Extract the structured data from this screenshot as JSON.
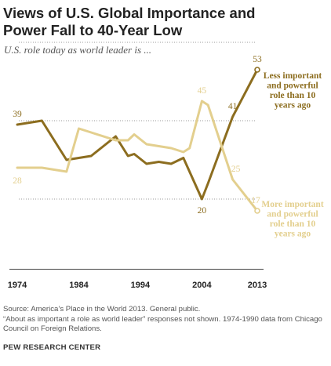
{
  "header": {
    "title": "Views of U.S. Global Importance and Power Fall to 40-Year Low",
    "subtitle": "U.S. role today as world leader is ..."
  },
  "footer": {
    "source_line": "Source: America’s Place in the World 2013. General public.",
    "note_line": "“About as important a role as world leader” responses not shown. 1974-1990 data from Chicago Council on Foreign Relations.",
    "org": "PEW RESEARCH CENTER"
  },
  "colors": {
    "less": "#8c6d1f",
    "more": "#e3cf8e",
    "grid": "#9a9a9a"
  },
  "chart_data": {
    "type": "line",
    "x_ticks": [
      "1974",
      "1984",
      "1994",
      "2004",
      "2013"
    ],
    "xlim": [
      1974,
      2013
    ],
    "ylim": [
      10,
      60
    ],
    "series": [
      {
        "name": "Less important and powerful role than 10 years ago",
        "label_lines": [
          "Less important",
          "and powerful",
          "role than 10",
          "years ago"
        ],
        "color": "#8c6d1f",
        "points": [
          [
            1974,
            39
          ],
          [
            1978,
            40
          ],
          [
            1982,
            30
          ],
          [
            1986,
            31
          ],
          [
            1990,
            36
          ],
          [
            1992,
            31
          ],
          [
            1993,
            31.5
          ],
          [
            1995,
            29
          ],
          [
            1997,
            29.5
          ],
          [
            1999,
            29
          ],
          [
            2001,
            30.5
          ],
          [
            2004,
            20
          ],
          [
            2005,
            24
          ],
          [
            2009,
            41
          ],
          [
            2013,
            53
          ]
        ],
        "labels": [
          [
            1974,
            39,
            "39"
          ],
          [
            2004,
            20,
            "20"
          ],
          [
            2009,
            41,
            "41"
          ],
          [
            2013,
            53,
            "53"
          ]
        ]
      },
      {
        "name": "More important and powerful role than 10 years ago",
        "label_lines": [
          "More important",
          "and powerful",
          "role than 10",
          "years ago"
        ],
        "color": "#e3cf8e",
        "points": [
          [
            1974,
            28
          ],
          [
            1978,
            28
          ],
          [
            1982,
            27
          ],
          [
            1984,
            38
          ],
          [
            1986,
            37
          ],
          [
            1990,
            35
          ],
          [
            1992,
            35
          ],
          [
            1993,
            36.5
          ],
          [
            1995,
            34
          ],
          [
            1997,
            33.5
          ],
          [
            1999,
            33
          ],
          [
            2001,
            32
          ],
          [
            2002,
            33
          ],
          [
            2004,
            45
          ],
          [
            2005,
            44
          ],
          [
            2009,
            25
          ],
          [
            2013,
            17
          ]
        ],
        "labels": [
          [
            1974,
            28,
            "28"
          ],
          [
            2004,
            45,
            "45"
          ],
          [
            2009,
            25,
            "25"
          ],
          [
            2013,
            17,
            "17"
          ]
        ]
      }
    ]
  }
}
